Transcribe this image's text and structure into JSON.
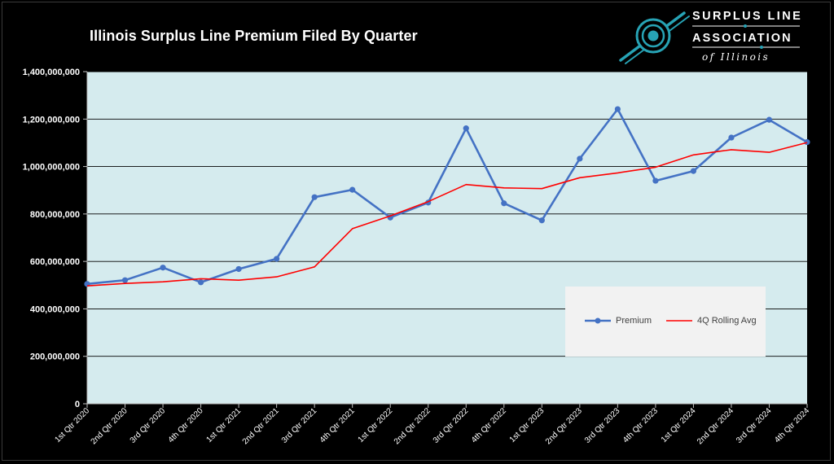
{
  "title": "Illinois Surplus Line Premium Filed By Quarter",
  "logo": {
    "line1": "SURPLUS LINE",
    "line2": "ASSOCIATION",
    "line3": "of Illinois",
    "accent_color": "#27a3b5"
  },
  "colors": {
    "background": "#000000",
    "plot_background": "#d5ebee",
    "premium": "#4472c4",
    "rolling_avg": "#ff0000",
    "gridline": "#000000",
    "legend_background": "#f2f2f2"
  },
  "chart_data": {
    "type": "line",
    "title": "Illinois Surplus Line Premium Filed By Quarter",
    "xlabel": "",
    "ylabel": "",
    "ylim": [
      0,
      1400000000
    ],
    "yticks": [
      0,
      200000000,
      400000000,
      600000000,
      800000000,
      1000000000,
      1200000000,
      1400000000
    ],
    "ytick_labels": [
      "0",
      "200,000,000",
      "400,000,000",
      "600,000,000",
      "800,000,000",
      "1,000,000,000",
      "1,200,000,000",
      "1,400,000,000"
    ],
    "grid": "horizontal",
    "legend_position": "lower-right",
    "categories": [
      "1st Qtr 2020",
      "2nd Qtr 2020",
      "3rd Qtr 2020",
      "4th Qtr 2020",
      "1st Qtr 2021",
      "2nd Qtr 2021",
      "3rd Qtr 2021",
      "4th Qtr 2021",
      "1st Qtr 2022",
      "2nd Qtr 2022",
      "3rd Qtr 2022",
      "4th Qtr 2022",
      "1st Qtr 2023",
      "2nd Qtr 2023",
      "3rd Qtr 2023",
      "4th Qtr 2023",
      "1st Qtr 2024",
      "2nd Qtr 2024",
      "3rd Qtr 2024",
      "4th Qtr 2024"
    ],
    "series": [
      {
        "name": "Premium",
        "color": "#4472c4",
        "marker": "circle",
        "values": [
          505000000,
          521000000,
          574000000,
          512000000,
          568000000,
          611000000,
          871000000,
          902000000,
          785000000,
          848000000,
          1161000000,
          845000000,
          773000000,
          1033000000,
          1242000000,
          940000000,
          981000000,
          1122000000,
          1197000000,
          1103000000
        ]
      },
      {
        "name": "4Q Rolling Avg",
        "color": "#ff0000",
        "marker": "none",
        "values": [
          497000000,
          507000000,
          514000000,
          527000000,
          521000000,
          535000000,
          577000000,
          738000000,
          792000000,
          852000000,
          924000000,
          910000000,
          907000000,
          953000000,
          973000000,
          997000000,
          1049000000,
          1071000000,
          1060000000,
          1101000000
        ]
      }
    ]
  }
}
